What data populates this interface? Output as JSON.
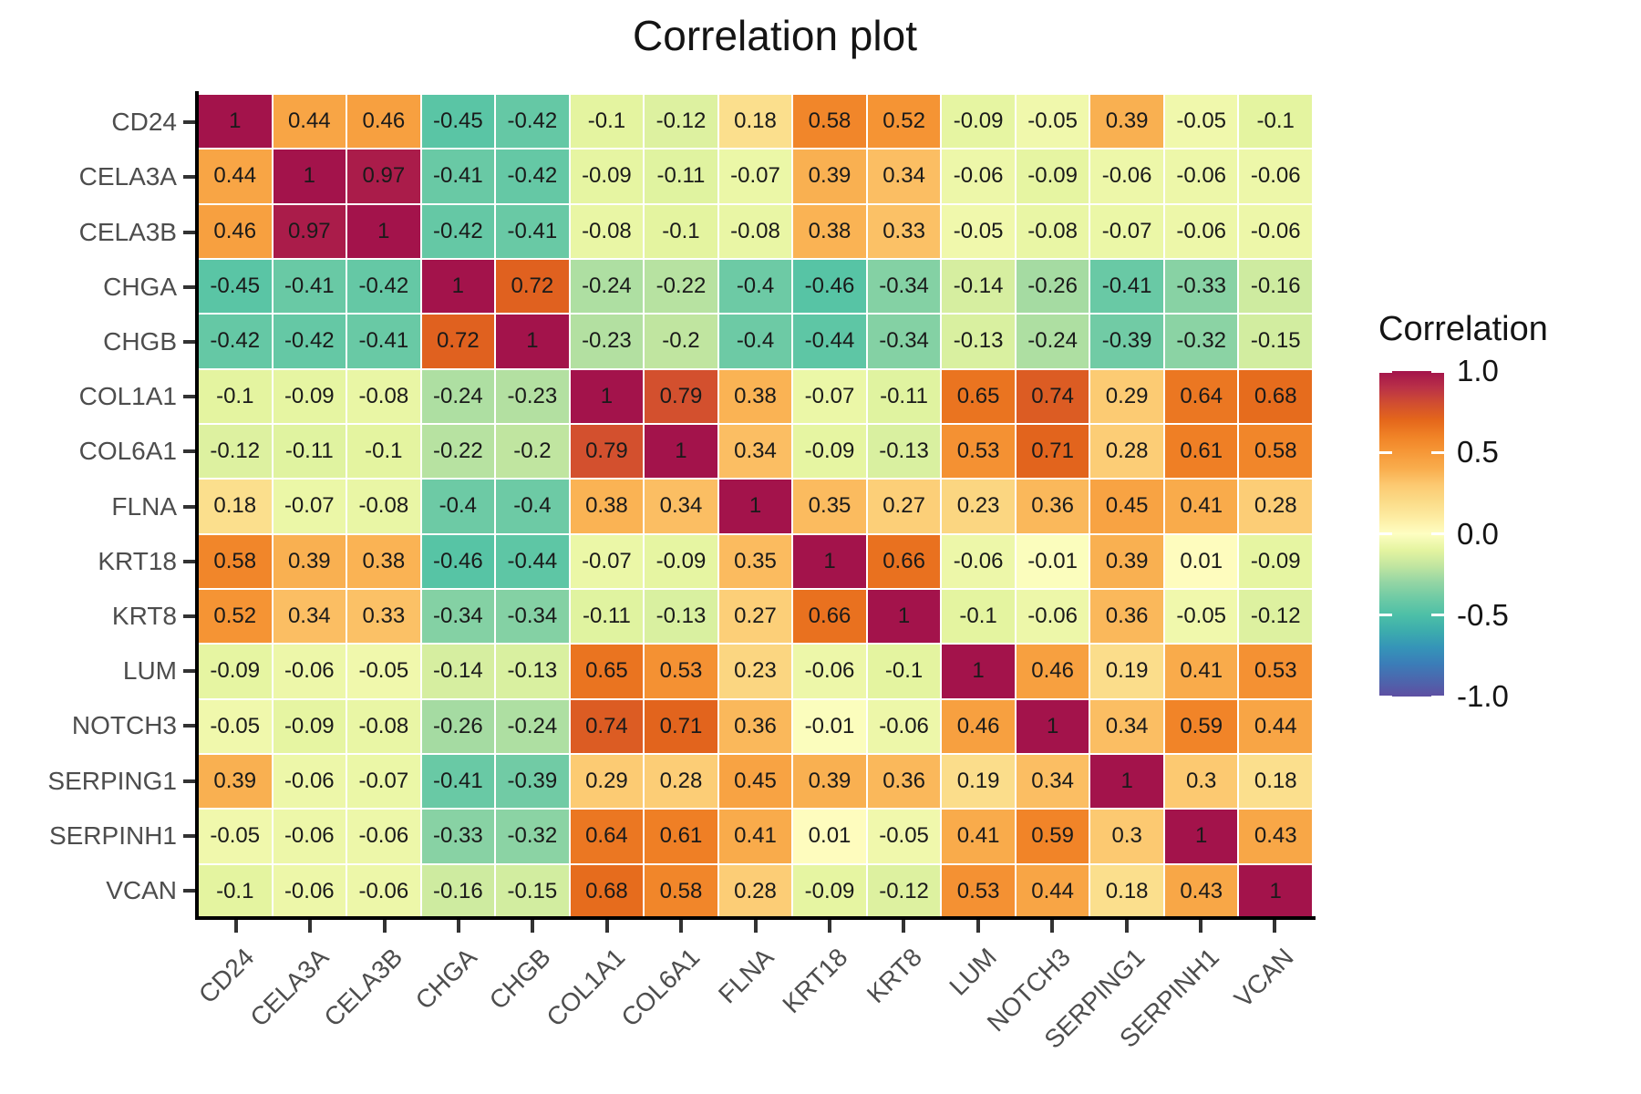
{
  "title": "Correlation plot",
  "legend": {
    "title": "Correlation",
    "ticks": [
      "1.0",
      "0.5",
      "0.0",
      "-0.5",
      "-1.0"
    ],
    "tick_values": [
      1,
      0.5,
      0,
      -0.5,
      -1
    ]
  },
  "chart_data": {
    "type": "heatmap",
    "title": "Correlation plot",
    "x_categories": [
      "CD24",
      "CELA3A",
      "CELA3B",
      "CHGA",
      "CHGB",
      "COL1A1",
      "COL6A1",
      "FLNA",
      "KRT18",
      "KRT8",
      "LUM",
      "NOTCH3",
      "SERPING1",
      "SERPINH1",
      "VCAN"
    ],
    "y_categories": [
      "CD24",
      "CELA3A",
      "CELA3B",
      "CHGA",
      "CHGB",
      "COL1A1",
      "COL6A1",
      "FLNA",
      "KRT18",
      "KRT8",
      "LUM",
      "NOTCH3",
      "SERPING1",
      "SERPINH1",
      "VCAN"
    ],
    "values": [
      [
        1,
        0.44,
        0.46,
        -0.45,
        -0.42,
        -0.1,
        -0.12,
        0.18,
        0.58,
        0.52,
        -0.09,
        -0.05,
        0.39,
        -0.05,
        -0.1
      ],
      [
        0.44,
        1,
        0.97,
        -0.41,
        -0.42,
        -0.09,
        -0.11,
        -0.07,
        0.39,
        0.34,
        -0.06,
        -0.09,
        -0.06,
        -0.06,
        -0.06
      ],
      [
        0.46,
        0.97,
        1,
        -0.42,
        -0.41,
        -0.08,
        -0.1,
        -0.08,
        0.38,
        0.33,
        -0.05,
        -0.08,
        -0.07,
        -0.06,
        -0.06
      ],
      [
        -0.45,
        -0.41,
        -0.42,
        1,
        0.72,
        -0.24,
        -0.22,
        -0.4,
        -0.46,
        -0.34,
        -0.14,
        -0.26,
        -0.41,
        -0.33,
        -0.16
      ],
      [
        -0.42,
        -0.42,
        -0.41,
        0.72,
        1,
        -0.23,
        -0.2,
        -0.4,
        -0.44,
        -0.34,
        -0.13,
        -0.24,
        -0.39,
        -0.32,
        -0.15
      ],
      [
        -0.1,
        -0.09,
        -0.08,
        -0.24,
        -0.23,
        1,
        0.79,
        0.38,
        -0.07,
        -0.11,
        0.65,
        0.74,
        0.29,
        0.64,
        0.68
      ],
      [
        -0.12,
        -0.11,
        -0.1,
        -0.22,
        -0.2,
        0.79,
        1,
        0.34,
        -0.09,
        -0.13,
        0.53,
        0.71,
        0.28,
        0.61,
        0.58
      ],
      [
        0.18,
        -0.07,
        -0.08,
        -0.4,
        -0.4,
        0.38,
        0.34,
        1,
        0.35,
        0.27,
        0.23,
        0.36,
        0.45,
        0.41,
        0.28
      ],
      [
        0.58,
        0.39,
        0.38,
        -0.46,
        -0.44,
        -0.07,
        -0.09,
        0.35,
        1,
        0.66,
        -0.06,
        -0.01,
        0.39,
        0.01,
        -0.09
      ],
      [
        0.52,
        0.34,
        0.33,
        -0.34,
        -0.34,
        -0.11,
        -0.13,
        0.27,
        0.66,
        1,
        -0.1,
        -0.06,
        0.36,
        -0.05,
        -0.12
      ],
      [
        -0.09,
        -0.06,
        -0.05,
        -0.14,
        -0.13,
        0.65,
        0.53,
        0.23,
        -0.06,
        -0.1,
        1,
        0.46,
        0.19,
        0.41,
        0.53
      ],
      [
        -0.05,
        -0.09,
        -0.08,
        -0.26,
        -0.24,
        0.74,
        0.71,
        0.36,
        -0.01,
        -0.06,
        0.46,
        1,
        0.34,
        0.59,
        0.44
      ],
      [
        0.39,
        -0.06,
        -0.07,
        -0.41,
        -0.39,
        0.29,
        0.28,
        0.45,
        0.39,
        0.36,
        0.19,
        0.34,
        1,
        0.3,
        0.18
      ],
      [
        -0.05,
        -0.06,
        -0.06,
        -0.33,
        -0.32,
        0.64,
        0.61,
        0.41,
        0.01,
        -0.05,
        0.41,
        0.59,
        0.3,
        1,
        0.43
      ],
      [
        -0.1,
        -0.06,
        -0.06,
        -0.16,
        -0.15,
        0.68,
        0.58,
        0.28,
        -0.09,
        -0.12,
        0.53,
        0.44,
        0.18,
        0.43,
        1
      ]
    ],
    "value_range": [
      -1,
      1
    ],
    "colorbar": {
      "label": "Correlation",
      "ticks": [
        1.0,
        0.5,
        0.0,
        -0.5,
        -1.0
      ]
    },
    "palette": "spectral-reversed",
    "grid": false,
    "legend_position": "right"
  },
  "colors": {
    "background": "#ffffff",
    "axis_line": "#000000",
    "tick_mark": "#333333",
    "axis_label": "#4d4d4d",
    "cell_text": "#1a1a1a",
    "title_text": "#141414",
    "gradient_stops": [
      [
        -1.0,
        "#5E4FA2"
      ],
      [
        -0.75,
        "#3288BD"
      ],
      [
        -0.55,
        "#3FB8A8"
      ],
      [
        -0.45,
        "#5AC5A5"
      ],
      [
        -0.3,
        "#93D5A4"
      ],
      [
        -0.2,
        "#C0E5A0"
      ],
      [
        -0.1,
        "#E4F4A0"
      ],
      [
        -0.04,
        "#F2F9AE"
      ],
      [
        0.0,
        "#FEFEC2"
      ],
      [
        0.06,
        "#FEF3AC"
      ],
      [
        0.18,
        "#FBDF8D"
      ],
      [
        0.3,
        "#FCC971"
      ],
      [
        0.4,
        "#F9AD4D"
      ],
      [
        0.5,
        "#F69838"
      ],
      [
        0.6,
        "#F08226"
      ],
      [
        0.7,
        "#E4661B"
      ],
      [
        0.8,
        "#D14E30"
      ],
      [
        0.9,
        "#B93048"
      ],
      [
        1.0,
        "#A3134B"
      ]
    ]
  }
}
